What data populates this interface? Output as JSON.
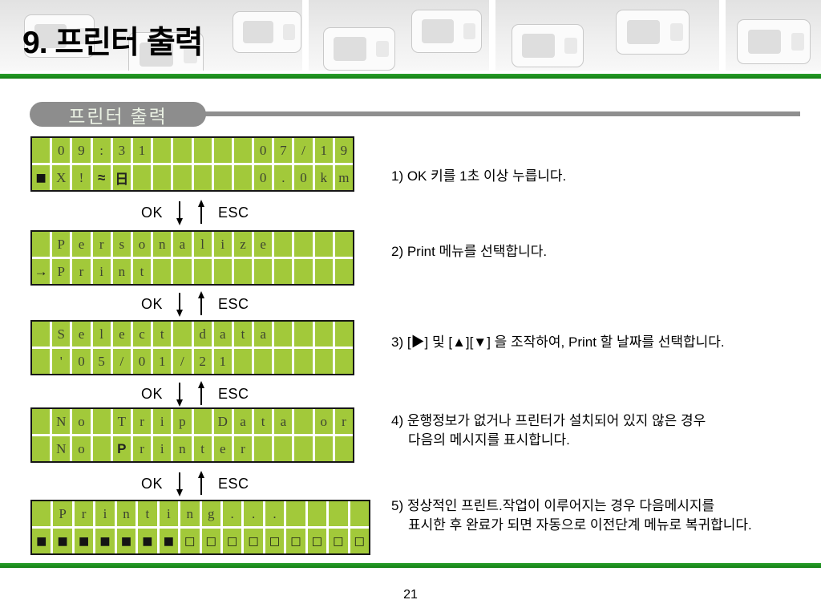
{
  "slide": {
    "title": "9. 프린터 출력",
    "section_label": "프린터 출력",
    "page_number": "21"
  },
  "controls": {
    "ok_label": "OK",
    "esc_label": "ESC"
  },
  "colors": {
    "lcd_green": "#a2c93a",
    "accent_green": "#1e8c1e",
    "pill_gray": "#8d8d8d"
  },
  "lcds": [
    {
      "rows": [
        [
          "",
          "0",
          "9",
          ":",
          "3",
          "1",
          "",
          "",
          "",
          "",
          "",
          "0",
          "7",
          "/",
          "1",
          "9"
        ],
        [
          "■",
          "X",
          "!",
          "≈",
          "日",
          "",
          "",
          "",
          "",
          "",
          "",
          "0",
          ".",
          "0",
          "k",
          "m"
        ]
      ],
      "bold_cells": [
        [
          1,
          3
        ],
        [
          1,
          4
        ]
      ]
    },
    {
      "rows": [
        [
          "",
          "P",
          "e",
          "r",
          "s",
          "o",
          "n",
          "a",
          "l",
          "i",
          "z",
          "e",
          "",
          "",
          "",
          ""
        ],
        [
          "→",
          "P",
          "r",
          "i",
          "n",
          "t",
          "",
          "",
          "",
          "",
          "",
          "",
          "",
          "",
          "",
          ""
        ]
      ],
      "bold_cells": [
        [
          1,
          0
        ]
      ]
    },
    {
      "rows": [
        [
          "",
          "S",
          "e",
          "l",
          "e",
          "c",
          "t",
          "",
          "d",
          "a",
          "t",
          "a",
          "",
          "",
          "",
          ""
        ],
        [
          "",
          "'",
          "0",
          "5",
          "/",
          "0",
          "1",
          "/",
          "2",
          "1",
          "",
          "",
          "",
          "",
          "",
          ""
        ]
      ],
      "bold_cells": []
    },
    {
      "rows": [
        [
          "",
          "N",
          "o",
          "",
          "T",
          "r",
          "i",
          "p",
          "",
          "D",
          "a",
          "t",
          "a",
          "",
          "o",
          "r"
        ],
        [
          "",
          "N",
          "o",
          "",
          "P",
          "r",
          "i",
          "n",
          "t",
          "e",
          "r",
          "",
          "",
          "",
          "",
          ""
        ]
      ],
      "bold_cells": [
        [
          1,
          4
        ]
      ]
    },
    {
      "rows": [
        [
          "",
          "P",
          "r",
          "i",
          "n",
          "t",
          "i",
          "n",
          "g",
          ".",
          ".",
          ".",
          "",
          "",
          "",
          ""
        ],
        [
          "■",
          "■",
          "■",
          "■",
          "■",
          "■",
          "■",
          "□",
          "□",
          "□",
          "□",
          "□",
          "□",
          "□",
          "□",
          "□"
        ]
      ],
      "bold_cells": []
    }
  ],
  "steps": [
    {
      "lines": [
        "1) OK 키를 1초 이상 누릅니다."
      ]
    },
    {
      "lines": [
        "2) Print 메뉴를 선택합니다."
      ]
    },
    {
      "lines": [
        "3) [▶] 및 [▲][▼] 을 조작하여, Print 할 날짜를 선택합니다."
      ]
    },
    {
      "lines": [
        "4) 운행정보가 없거나 프린터가 설치되어 있지 않은 경우",
        "다음의 메시지를 표시합니다."
      ]
    },
    {
      "lines": [
        "5) 정상적인 프린트.작업이 이루어지는 경우 다음메시지를",
        "표시한 후 완료가 되면 자동으로 이전단계 메뉴로 복귀합니다."
      ]
    }
  ]
}
